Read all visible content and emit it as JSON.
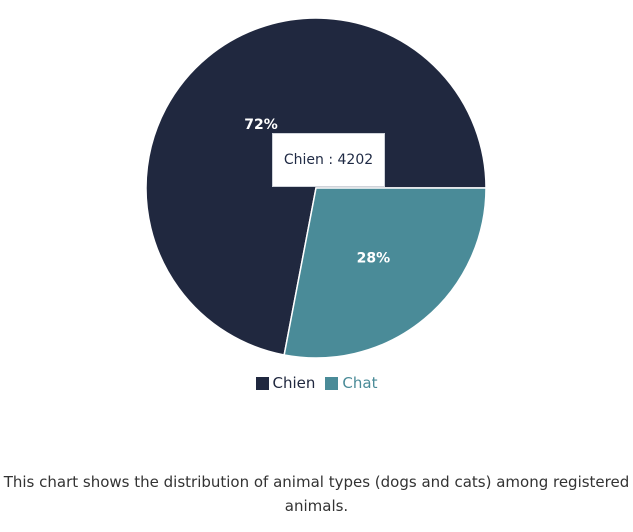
{
  "chart_data": {
    "type": "pie",
    "title": "",
    "categories": [
      "Chien",
      "Chat"
    ],
    "values": [
      4202,
      1634
    ],
    "percent_labels": [
      "72%",
      "28%"
    ],
    "colors": [
      "#20283f",
      "#4a8b98"
    ],
    "legend_placement": "bottom",
    "tooltip": {
      "category": "Chien",
      "value": "4202",
      "text": "Chien : 4202"
    }
  },
  "legend": {
    "items": [
      {
        "label": "Chien",
        "color": "#20283f",
        "text_color": "#20283f"
      },
      {
        "label": "Chat",
        "color": "#4a8b98",
        "text_color": "#4a8b98"
      }
    ]
  },
  "caption": "This chart shows the distribution of animal types (dogs and cats) among registered animals."
}
